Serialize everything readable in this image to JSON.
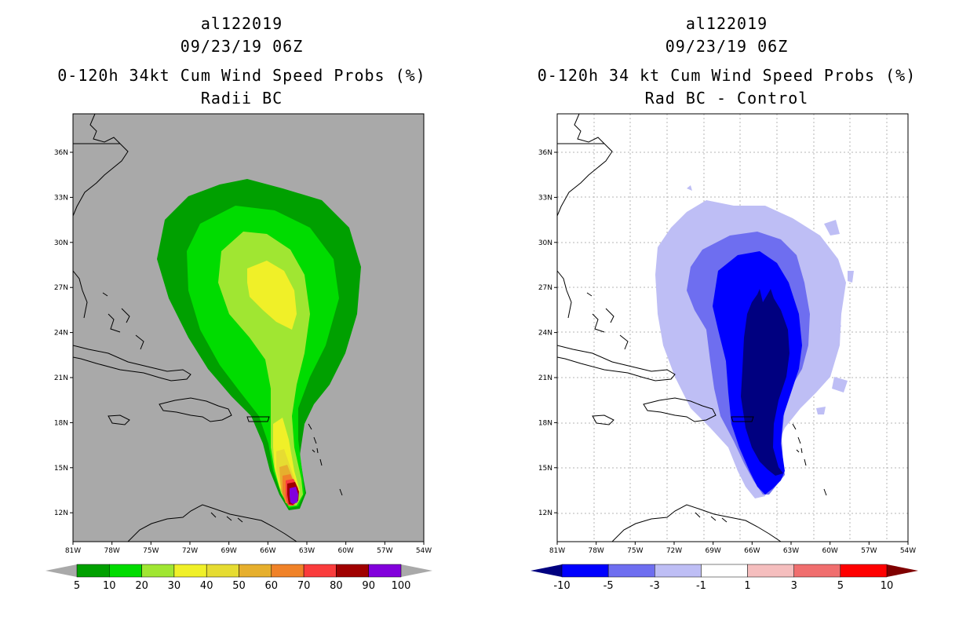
{
  "panels": [
    {
      "storm_id": "al122019",
      "datetime": "09/23/19 06Z",
      "product": "0-120h 34kt Cum Wind Speed Probs (%)",
      "subtitle": "Radii BC",
      "background": "#a9a9a9",
      "colorbar": {
        "labels": [
          "5",
          "10",
          "20",
          "30",
          "40",
          "50",
          "60",
          "70",
          "80",
          "90",
          "100"
        ],
        "colors": [
          "#00a000",
          "#00dc00",
          "#a0e632",
          "#f0f028",
          "#e6dc32",
          "#e6af2d",
          "#f08228",
          "#fa3c3c",
          "#a00000",
          "#8200dc"
        ],
        "extend_colors": [
          "#a9a9a9",
          "#a9a9a9"
        ]
      }
    },
    {
      "storm_id": "al122019",
      "datetime": "09/23/19 06Z",
      "product": "0-120h 34 kt Cum Wind Speed Probs (%)",
      "subtitle": "Rad BC - Control",
      "background": "#ffffff",
      "colorbar": {
        "labels": [
          "-10",
          "-5",
          "-3",
          "-1",
          "1",
          "3",
          "5",
          "10"
        ],
        "colors": [
          "#0000ff",
          "#6e6ef0",
          "#bebef5",
          "#ffffff",
          "#f5bebe",
          "#f06e6e",
          "#ff0000"
        ],
        "extend_colors": [
          "#000080",
          "#800000"
        ]
      }
    }
  ],
  "axes": {
    "lat_labels": [
      "36N",
      "33N",
      "30N",
      "27N",
      "24N",
      "21N",
      "18N",
      "15N",
      "12N"
    ],
    "lon_labels": [
      "81W",
      "78W",
      "75W",
      "72W",
      "69W",
      "66W",
      "63W",
      "60W",
      "57W",
      "54W"
    ]
  }
}
